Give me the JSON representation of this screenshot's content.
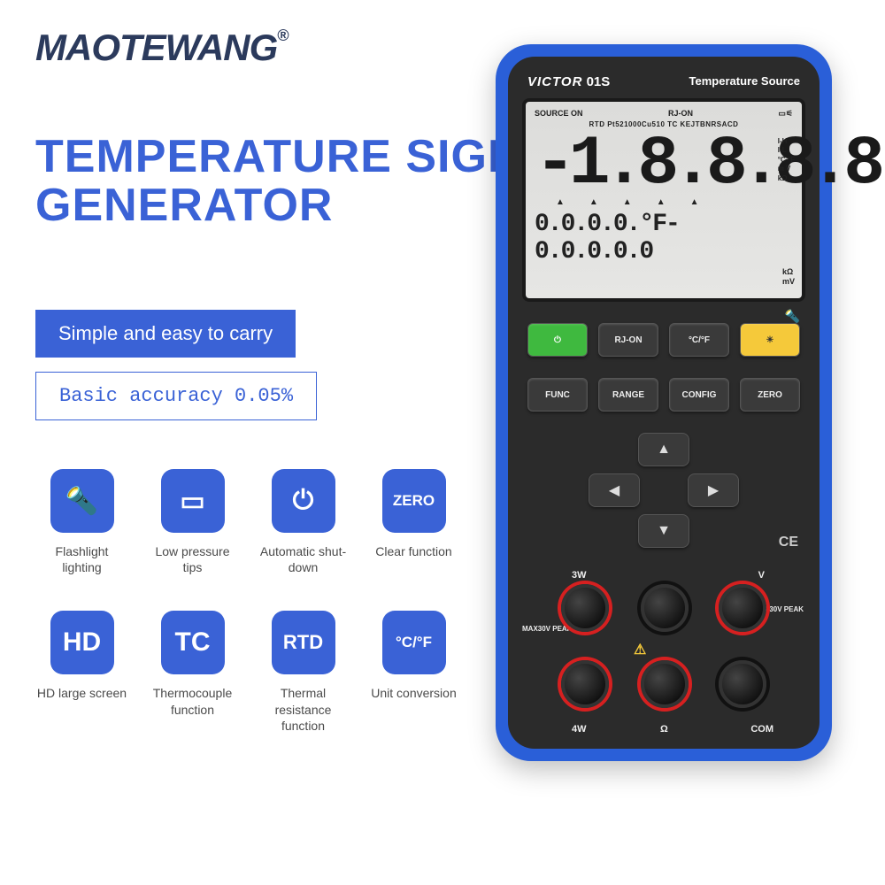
{
  "brand": "MAOTEWANG",
  "title_line1": "TEMPERATURE SIGNAL",
  "title_line2": "GENERATOR",
  "tagline1": "Simple and easy to carry",
  "tagline2": "Basic accuracy 0.05%",
  "colors": {
    "accent": "#3a62d6",
    "device_blue": "#2a5fd8",
    "face_dark": "#2b2b2b",
    "text_grey": "#4a4a4a"
  },
  "features": [
    {
      "icon_text": "🔦",
      "name": "flashlight-icon",
      "label": "Flashlight lighting"
    },
    {
      "icon_text": "▭",
      "name": "battery-icon",
      "label": "Low pressure tips"
    },
    {
      "icon_text": "⏻",
      "name": "power-off-icon",
      "label": "Automatic shut-down"
    },
    {
      "icon_text": "ZERO",
      "name": "zero-icon",
      "label": "Clear function"
    },
    {
      "icon_text": "HD",
      "name": "hd-icon",
      "label": "HD large screen"
    },
    {
      "icon_text": "TC",
      "name": "tc-icon",
      "label": "Thermocouple function"
    },
    {
      "icon_text": "RTD",
      "name": "rtd-icon",
      "label": "Thermal resistance function"
    },
    {
      "icon_text": "°C/°F",
      "name": "unit-icon",
      "label": "Unit conversion"
    }
  ],
  "device": {
    "brand": "VICTOR",
    "model": "01S",
    "subtitle": "Temperature Source",
    "lcd": {
      "top_left": "SOURCE  ON",
      "top_center": "RJ-ON",
      "top_line2": "RTD Pt521000Cu510 TC KEJTBNRSACD",
      "main": "-1.8.8.8.8",
      "units": "I-H\nI-L\n°C °F\nm V\nkΩ",
      "sub": "0.0.0.0.°F-0.0.0.0.0",
      "sub_units": "kΩ\nmV"
    },
    "buttons_row1": [
      "⏻",
      "RJ-ON",
      "°C/°F",
      "☀"
    ],
    "buttons_row2": [
      "FUNC",
      "RANGE",
      "CONFIG",
      "ZERO"
    ],
    "ce": "CE",
    "port_labels": {
      "3w": "3W",
      "4w": "4W",
      "v": "V",
      "ohm": "Ω",
      "com": "COM",
      "max": "MAX30V PEAK"
    }
  }
}
